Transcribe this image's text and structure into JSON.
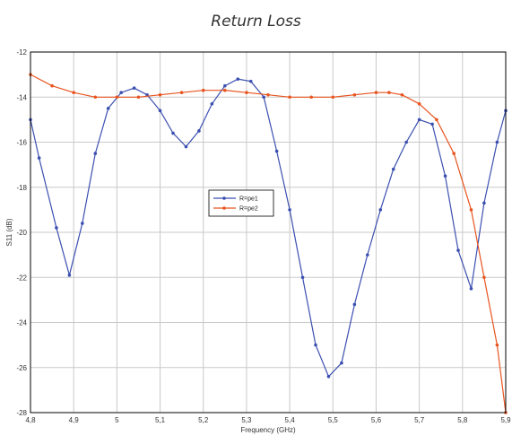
{
  "caption": "Return Loss",
  "chart_data": {
    "type": "line",
    "title": "",
    "xlabel": "Frequency (GHz)",
    "ylabel": "S11 (dB)",
    "xlim": [
      4.8,
      5.9
    ],
    "ylim": [
      -28,
      -12
    ],
    "xticks": [
      4.8,
      4.9,
      5.0,
      5.1,
      5.2,
      5.3,
      5.4,
      5.5,
      5.6,
      5.7,
      5.8,
      5.9
    ],
    "xtick_labels": [
      "4,8",
      "4,9",
      "5",
      "5,1",
      "5,2",
      "5,3",
      "5,4",
      "5,5",
      "5,6",
      "5,7",
      "5,8",
      "5,9"
    ],
    "yticks": [
      -28,
      -26,
      -24,
      -22,
      -20,
      -18,
      -16,
      -14,
      -12
    ],
    "ytick_labels": [
      "-28",
      "-26",
      "-24",
      "-22",
      "-20",
      "-18",
      "-16",
      "-14",
      "-12"
    ],
    "grid": true,
    "legend_position": "center-left",
    "series": [
      {
        "name": "R=pe1",
        "color": "#3b4fb0",
        "marker": "dot",
        "x": [
          4.8,
          4.82,
          4.86,
          4.89,
          4.92,
          4.95,
          4.98,
          5.01,
          5.04,
          5.07,
          5.1,
          5.13,
          5.16,
          5.19,
          5.22,
          5.25,
          5.28,
          5.31,
          5.34,
          5.37,
          5.4,
          5.43,
          5.46,
          5.49,
          5.52,
          5.55,
          5.58,
          5.61,
          5.64,
          5.67,
          5.7,
          5.73,
          5.76,
          5.79,
          5.82,
          5.85,
          5.88,
          5.9
        ],
        "y": [
          -15,
          -16.7,
          -19.8,
          -21.9,
          -19.6,
          -16.5,
          -14.5,
          -13.8,
          -13.6,
          -13.9,
          -14.6,
          -15.6,
          -16.2,
          -15.5,
          -14.3,
          -13.5,
          -13.2,
          -13.3,
          -14.0,
          -16.4,
          -19.0,
          -22.0,
          -25.0,
          -26.4,
          -25.8,
          -23.2,
          -21.0,
          -19.0,
          -17.2,
          -16.0,
          -15.0,
          -15.2,
          -17.5,
          -20.8,
          -22.5,
          -18.7,
          -16.0,
          -14.6
        ]
      },
      {
        "name": "R=pe2",
        "color": "#e8541f",
        "marker": "dot",
        "x": [
          4.8,
          4.85,
          4.9,
          4.95,
          5.0,
          5.05,
          5.1,
          5.15,
          5.2,
          5.25,
          5.3,
          5.35,
          5.4,
          5.45,
          5.5,
          5.55,
          5.6,
          5.63,
          5.66,
          5.7,
          5.74,
          5.78,
          5.82,
          5.85,
          5.88,
          5.9
        ],
        "y": [
          -13.0,
          -13.5,
          -13.8,
          -14.0,
          -14.0,
          -14.0,
          -13.9,
          -13.8,
          -13.7,
          -13.7,
          -13.8,
          -13.9,
          -14.0,
          -14.0,
          -14.0,
          -13.9,
          -13.8,
          -13.8,
          -13.9,
          -14.3,
          -15.0,
          -16.5,
          -19.0,
          -22.0,
          -25.0,
          -28.0
        ]
      }
    ]
  }
}
